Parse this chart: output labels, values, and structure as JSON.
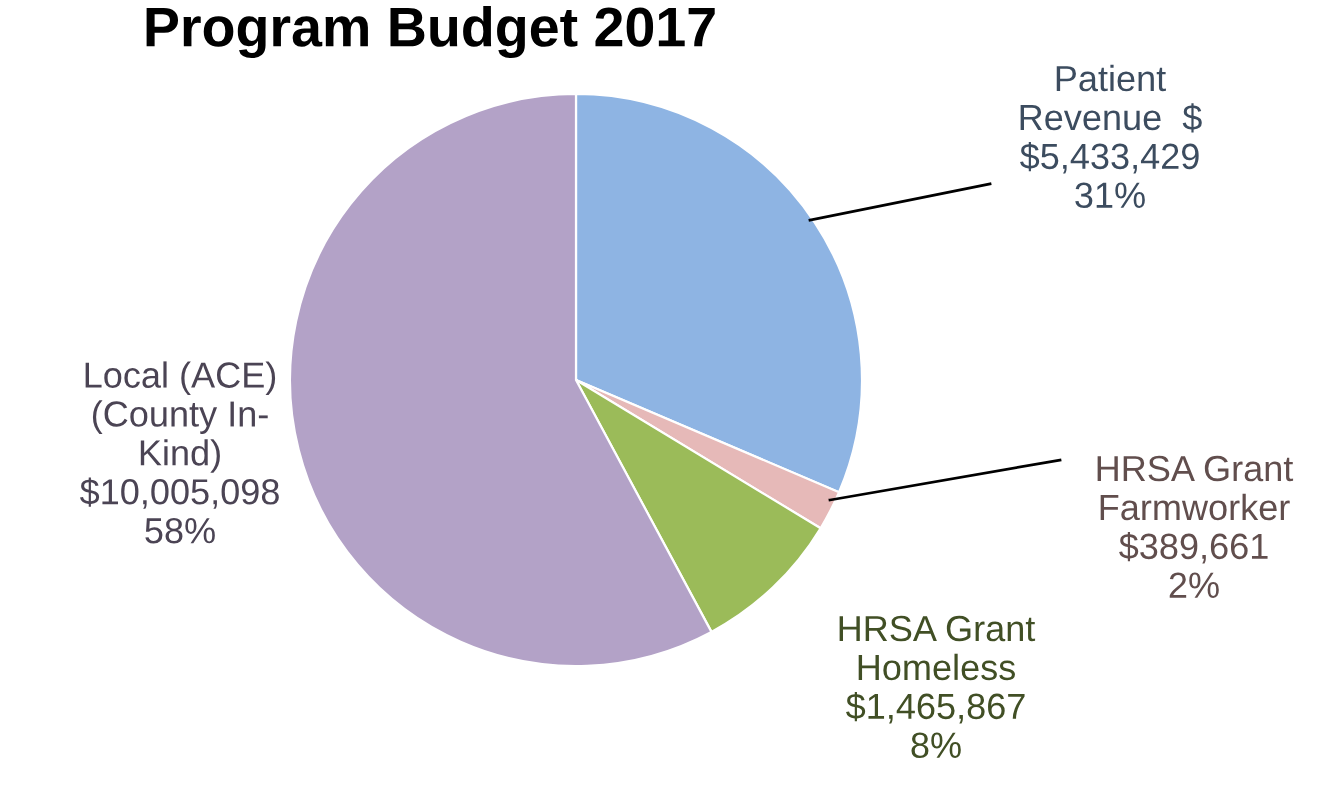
{
  "chart_data": {
    "type": "pie",
    "title": "Program Budget 2017",
    "categories": [
      "Patient\nRevenue  $",
      "HRSA Grant\nFarmworker",
      "HRSA Grant\nHomeless",
      "Local (ACE)\n(County In-\nKind)"
    ],
    "values": [
      5433429,
      389661,
      1465867,
      10005098
    ],
    "value_labels": [
      "$5,433,429\n31%",
      "$389,661\n2%",
      "$1,465,867\n8%",
      "$10,005,098\n58%"
    ],
    "colors": [
      "#8eb4e3",
      "#e6b9b8",
      "#9bbb59",
      "#b3a2c7"
    ]
  }
}
